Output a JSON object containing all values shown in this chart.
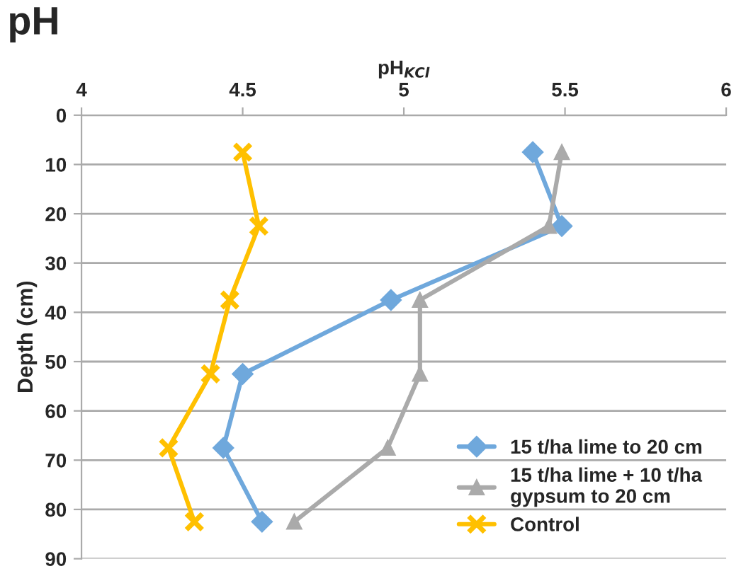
{
  "chart_data": {
    "type": "line",
    "title": "pH",
    "xlabel": "pH$_{KCl}$",
    "ylabel": "Depth (cm)",
    "xlim": [
      4,
      6
    ],
    "xticks": [
      4,
      4.5,
      5,
      5.5,
      6
    ],
    "ylim": [
      90,
      0
    ],
    "yticks": [
      0,
      10,
      20,
      30,
      40,
      50,
      60,
      70,
      80,
      90
    ],
    "grid": "y",
    "legend": "bottom right",
    "line_style": "solid",
    "series": [
      {
        "name": "15 t/ha lime to 20 cm",
        "color": "#6fa8dc",
        "marker": "diamond",
        "x": [
          5.4,
          5.49,
          4.96,
          4.5,
          4.44,
          4.56
        ],
        "values": [
          7.5,
          22.5,
          37.5,
          52.5,
          67.5,
          82.5
        ]
      },
      {
        "name": "15 t/ha lime + 10 t/ha gypsum to 20 cm",
        "color": "#aaaaaa",
        "marker": "triangle",
        "x": [
          5.49,
          5.45,
          5.05,
          5.05,
          4.95,
          4.66
        ],
        "values": [
          7.5,
          22.5,
          37.5,
          52.5,
          67.5,
          82.5
        ]
      },
      {
        "name": "Control",
        "color": "#ffc000",
        "marker": "cross",
        "x": [
          4.5,
          4.55,
          4.46,
          4.4,
          4.27,
          4.35
        ],
        "values": [
          7.5,
          22.5,
          37.5,
          52.5,
          67.5,
          82.5
        ]
      }
    ]
  }
}
